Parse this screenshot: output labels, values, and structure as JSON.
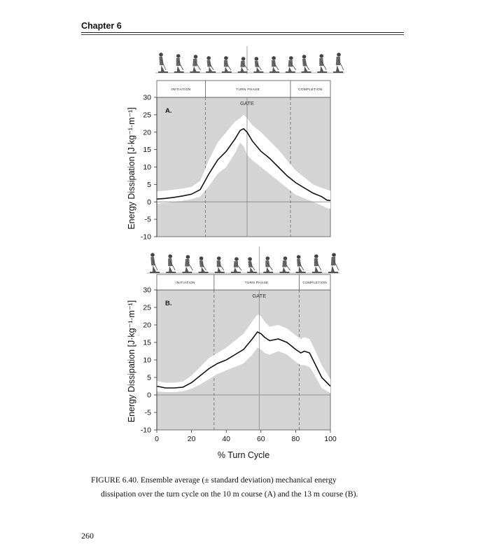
{
  "header": {
    "chapter": "Chapter 6"
  },
  "footer": {
    "page_number": "260"
  },
  "caption": {
    "line1": "FIGURE 6.40.  Ensemble average (± standard deviation) mechanical energy",
    "line2": "dissipation over the turn cycle on the 10 m course (A) and the 13 m course (B)."
  },
  "chart_data": [
    {
      "type": "line",
      "panel_label": "A.",
      "phases": [
        "INITIATION",
        "TURN PHASE",
        "COMPLETION"
      ],
      "phase_bounds": [
        0,
        28,
        77,
        100
      ],
      "phase_dividers_x": [
        28,
        77
      ],
      "gate_label": "GATE",
      "gate_x": 52,
      "ylabel": "Energy Dissipation [J·kg⁻¹·m⁻¹]",
      "xlabel": "",
      "xlim": [
        0,
        100
      ],
      "ylim": [
        -10,
        30
      ],
      "yticks": [
        -10,
        -5,
        0,
        5,
        10,
        15,
        20,
        25,
        30
      ],
      "x": [
        0,
        5,
        10,
        15,
        20,
        25,
        30,
        35,
        40,
        45,
        48,
        50,
        52,
        55,
        60,
        65,
        70,
        75,
        80,
        85,
        90,
        95,
        98,
        100
      ],
      "mean": [
        0.8,
        1.0,
        1.3,
        1.7,
        2.2,
        3.5,
        8.0,
        12.0,
        14.5,
        18.0,
        20.5,
        21.0,
        20.0,
        17.5,
        14.5,
        12.5,
        10.0,
        7.5,
        5.5,
        4.0,
        2.5,
        1.5,
        0.5,
        0.4
      ],
      "upper": [
        3.0,
        3.2,
        3.5,
        3.8,
        4.3,
        6.0,
        12.0,
        17.0,
        20.0,
        23.0,
        24.0,
        25.0,
        24.0,
        22.0,
        20.0,
        17.5,
        15.0,
        12.0,
        9.0,
        7.0,
        5.0,
        4.0,
        3.5,
        3.2
      ],
      "lower": [
        -0.5,
        -0.3,
        0,
        0.3,
        0.8,
        1.5,
        4.5,
        8.0,
        10.0,
        14.0,
        17.0,
        16.0,
        13.5,
        12.0,
        10.0,
        8.0,
        6.0,
        4.0,
        2.0,
        1.0,
        0,
        -1.0,
        -1.8,
        -2.0
      ],
      "grid": false
    },
    {
      "type": "line",
      "panel_label": "B.",
      "phases": [
        "INITIATION",
        "TURN PHASE",
        "COMPLETION"
      ],
      "phase_bounds": [
        0,
        33,
        82,
        100
      ],
      "phase_dividers_x": [
        33,
        82
      ],
      "gate_label": "GATE",
      "gate_x": 59,
      "ylabel": "Energy Dissipation [J·kg⁻¹·m⁻¹]",
      "xlabel": "% Turn Cycle",
      "xlim": [
        0,
        100
      ],
      "ylim": [
        -10,
        30
      ],
      "yticks": [
        -10,
        -5,
        0,
        5,
        10,
        15,
        20,
        25,
        30
      ],
      "xticks": [
        0,
        20,
        40,
        60,
        80,
        100
      ],
      "x": [
        0,
        5,
        10,
        15,
        20,
        25,
        30,
        35,
        40,
        45,
        50,
        55,
        58,
        60,
        62,
        65,
        70,
        75,
        80,
        83,
        85,
        88,
        90,
        95,
        100
      ],
      "mean": [
        2.5,
        2.0,
        2.0,
        2.2,
        3.5,
        5.5,
        7.5,
        9.0,
        10.0,
        11.5,
        13.0,
        16.0,
        18.0,
        17.5,
        16.5,
        15.5,
        16.0,
        15.0,
        13.0,
        12.0,
        12.5,
        12.0,
        10.0,
        5.0,
        2.5
      ],
      "upper": [
        4.0,
        3.5,
        3.5,
        3.8,
        5.5,
        8.0,
        10.5,
        12.0,
        13.5,
        15.5,
        17.5,
        21.0,
        23.0,
        22.5,
        21.0,
        19.5,
        20.0,
        19.0,
        17.0,
        16.0,
        16.5,
        16.0,
        14.0,
        8.5,
        4.5
      ],
      "lower": [
        1.0,
        0.8,
        0.8,
        1.0,
        1.8,
        3.0,
        4.5,
        6.0,
        7.0,
        8.0,
        9.0,
        11.5,
        13.5,
        13.0,
        12.0,
        11.5,
        12.5,
        11.5,
        9.5,
        8.5,
        8.5,
        8.0,
        6.5,
        2.0,
        0.5
      ],
      "grid": false
    }
  ]
}
